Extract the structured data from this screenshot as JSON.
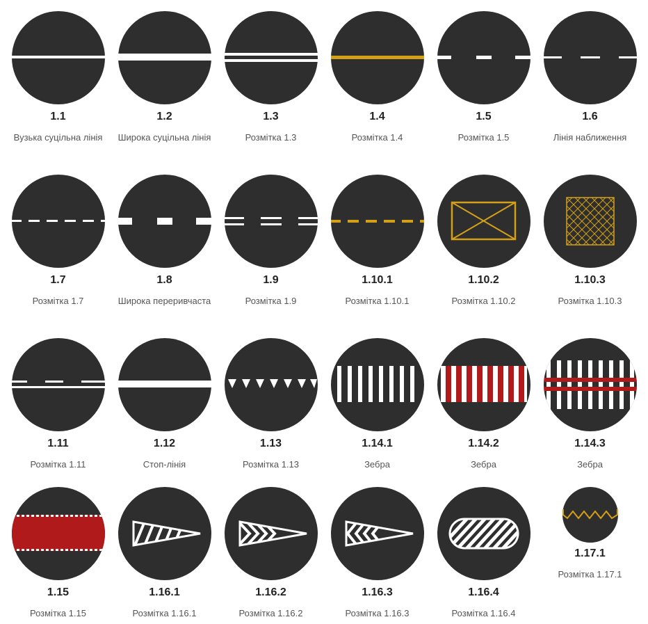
{
  "colors": {
    "circle": "#2e2e2e",
    "white": "#ffffff",
    "yellow": "#d4a017",
    "red": "#b01a1a"
  },
  "items": [
    {
      "code": "1.1",
      "name": "Вузька суцільна лінія",
      "icon": "narrow-solid-line-icon"
    },
    {
      "code": "1.2",
      "name": "Широка суцільна лінія",
      "icon": "wide-solid-line-icon"
    },
    {
      "code": "1.3",
      "name": "Розмітка 1.3",
      "icon": "double-solid-line-icon"
    },
    {
      "code": "1.4",
      "name": "Розмітка 1.4",
      "icon": "yellow-solid-line-icon"
    },
    {
      "code": "1.5",
      "name": "Розмітка 1.5",
      "icon": "broken-line-icon"
    },
    {
      "code": "1.6",
      "name": "Лінія наближення",
      "icon": "approach-line-icon"
    },
    {
      "code": "1.7",
      "name": "Розмітка 1.7",
      "icon": "short-dash-line-icon"
    },
    {
      "code": "1.8",
      "name": "Широка переривчаста",
      "icon": "wide-broken-line-icon"
    },
    {
      "code": "1.9",
      "name": "Розмітка 1.9",
      "icon": "double-broken-line-icon"
    },
    {
      "code": "1.10.1",
      "name": "Розмітка 1.10.1",
      "icon": "yellow-broken-line-icon"
    },
    {
      "code": "1.10.2",
      "name": "Розмітка 1.10.2",
      "icon": "yellow-box-cross-icon"
    },
    {
      "code": "1.10.3",
      "name": "Розмітка 1.10.3",
      "icon": "yellow-grid-box-icon"
    },
    {
      "code": "1.11",
      "name": "Розмітка 1.11",
      "icon": "combined-line-icon"
    },
    {
      "code": "1.12",
      "name": "Стоп-лінія",
      "icon": "stop-line-icon"
    },
    {
      "code": "1.13",
      "name": "Розмітка 1.13",
      "icon": "triangles-line-icon"
    },
    {
      "code": "1.14.1",
      "name": "Зебра",
      "icon": "zebra-crossing-icon"
    },
    {
      "code": "1.14.2",
      "name": "Зебра",
      "icon": "zebra-red-white-icon"
    },
    {
      "code": "1.14.3",
      "name": "Зебра",
      "icon": "zebra-red-stripes-icon"
    },
    {
      "code": "1.15",
      "name": "Розмітка 1.15",
      "icon": "red-bike-lane-icon"
    },
    {
      "code": "1.16.1",
      "name": "Розмітка 1.16.1",
      "icon": "island-diagonal-icon"
    },
    {
      "code": "1.16.2",
      "name": "Розмітка 1.16.2",
      "icon": "island-chevron-icon"
    },
    {
      "code": "1.16.3",
      "name": "Розмітка 1.16.3",
      "icon": "island-chevron-left-icon"
    },
    {
      "code": "1.16.4",
      "name": "Розмітка 1.16.4",
      "icon": "island-rounded-stripes-icon"
    },
    {
      "code": "1.17.1",
      "name": "Розмітка 1.17.1",
      "icon": "zigzag-line-icon"
    }
  ]
}
